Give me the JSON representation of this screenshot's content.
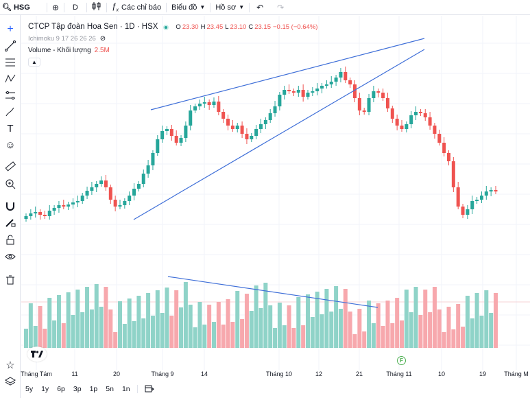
{
  "toolbar": {
    "symbol": "HSG",
    "interval": "D",
    "indicators_label": "Các chỉ báo",
    "chart_label": "Biểu đồ",
    "profile_label": "Hồ sơ",
    "icons": [
      "search-icon",
      "add-circle-icon",
      "candles-icon",
      "fx-icon",
      "undo-icon",
      "redo-icon"
    ]
  },
  "legend": {
    "title": "CTCP Tập đoàn Hoa Sen · 1D · HSX",
    "o_label": "O",
    "o_value": "23.30",
    "h_label": "H",
    "h_value": "23.45",
    "l_label": "L",
    "l_value": "23.10",
    "c_label": "C",
    "c_value": "23.15",
    "change": "−0.15 (−0.64%)",
    "ichimoku": "Ichimoku 9 17 26 26 26",
    "volume_label": "Volume - Khối lượng",
    "volume_value": "2.5M"
  },
  "colors": {
    "up": "#26a69a",
    "down": "#ef5350",
    "vol_up": "#8fd3c8",
    "vol_down": "#f7a8ad",
    "trendline": "#3f6fd8"
  },
  "time_axis": {
    "labels": [
      "Tháng Tám",
      "11",
      "20",
      "Tháng 9",
      "14",
      "Tháng 10",
      "12",
      "21",
      "Tháng 11",
      "10",
      "19",
      "Tháng M"
    ]
  },
  "range_bar": {
    "items": [
      "5y",
      "1y",
      "6p",
      "3p",
      "1p",
      "5n",
      "1n"
    ]
  },
  "badges": {
    "event_badge": "F"
  }
}
